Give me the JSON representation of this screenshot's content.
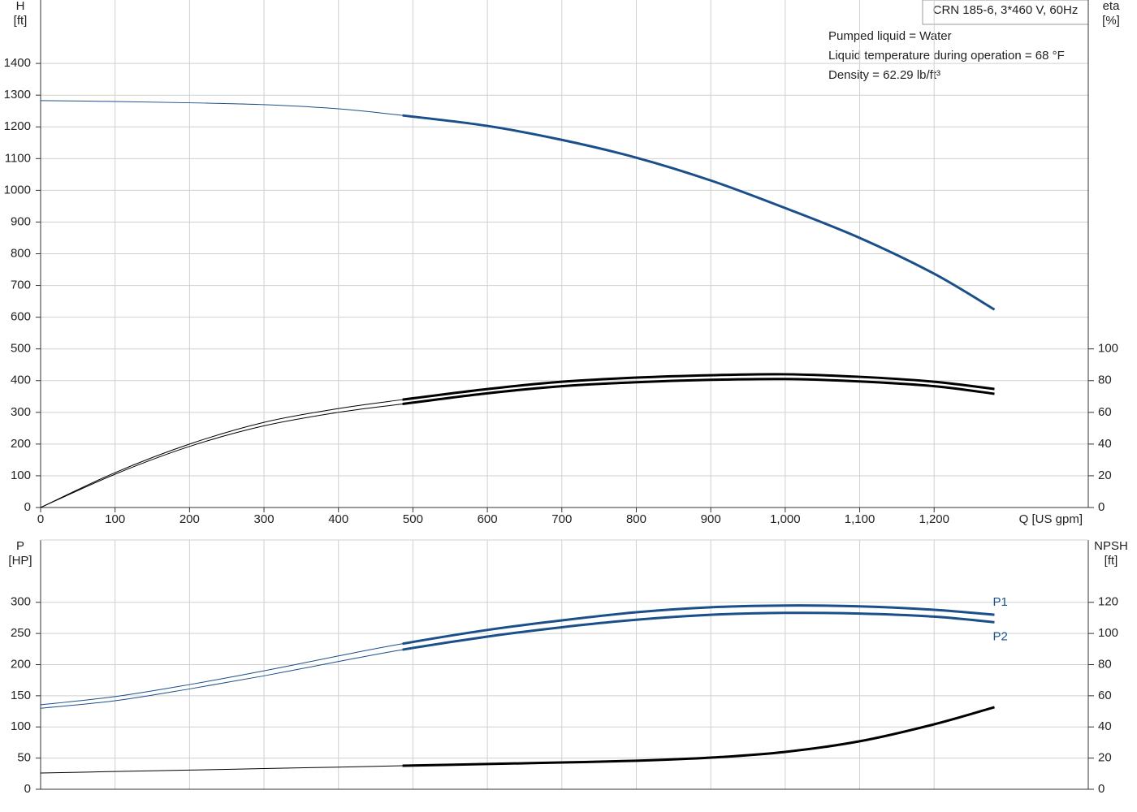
{
  "chart_data": [
    {
      "type": "line",
      "title": "CRN 185-6, 3*460 V, 60Hz",
      "notes": [
        "Pumped liquid = Water",
        "Liquid temperature during operation = 68 °F",
        "Density = 62.29 lb/ft³"
      ],
      "ylabel": "H",
      "yunit": "[ft]",
      "y2label": "eta",
      "y2unit": "[%]",
      "xlabel": "Q [US gpm]",
      "x": [
        0,
        100,
        200,
        300,
        400,
        486,
        600,
        700,
        800,
        900,
        1000,
        1100,
        1200,
        1281
      ],
      "xlim": [
        0,
        1407
      ],
      "xticks": [
        0,
        100,
        200,
        300,
        400,
        500,
        600,
        700,
        800,
        900,
        {
          "value": 1000,
          "label": "1,000"
        },
        {
          "value": 1100,
          "label": "1,100"
        },
        {
          "value": 1200,
          "label": "1,200"
        }
      ],
      "ylim": [
        0,
        1600
      ],
      "yticks": [
        0,
        100,
        200,
        300,
        400,
        500,
        600,
        700,
        800,
        900,
        1000,
        1100,
        1200,
        1300,
        1400
      ],
      "y2lim": [
        0,
        320
      ],
      "y2ticks": [
        0,
        20,
        40,
        60,
        80,
        100
      ],
      "grid": true,
      "bold_from_x": 486,
      "series": [
        {
          "color": "#1a4f8a",
          "values": [
            1283,
            1280,
            1276,
            1270,
            1257,
            1236,
            1203,
            1159,
            1103,
            1031,
            944,
            850,
            737,
            624
          ]
        },
        {
          "color": "#000000",
          "axis": "y2",
          "values": [
            0,
            22,
            40,
            53.7,
            62.4,
            68,
            74.7,
            79.3,
            81.9,
            83.4,
            84,
            82.4,
            79.3,
            74.7
          ]
        },
        {
          "color": "#000000",
          "axis": "y2",
          "values": [
            0,
            21,
            38.5,
            51.5,
            60,
            65.3,
            72,
            76.5,
            79,
            80.5,
            81,
            79.5,
            76.5,
            71.7
          ]
        }
      ]
    },
    {
      "type": "line",
      "ylabel": "P",
      "yunit": "[HP]",
      "y2label": "NPSH",
      "y2unit": "[ft]",
      "x": [
        0,
        100,
        200,
        300,
        400,
        486,
        600,
        700,
        800,
        900,
        1000,
        1100,
        1200,
        1281
      ],
      "xlim": [
        0,
        1407
      ],
      "ylim": [
        0,
        400
      ],
      "yticks": [
        0,
        50,
        100,
        150,
        200,
        250,
        300
      ],
      "y2lim": [
        0,
        160
      ],
      "y2ticks": [
        0,
        20,
        40,
        60,
        80,
        100,
        120
      ],
      "grid": true,
      "bold_from_x": 486,
      "series": [
        {
          "name": "P1",
          "color": "#1a4f8a",
          "values": [
            135.6,
            148.7,
            168,
            190,
            214,
            233.5,
            255.6,
            271,
            284,
            292,
            294.8,
            293.5,
            288,
            280
          ]
        },
        {
          "name": "P2",
          "color": "#1a4f8a",
          "values": [
            130,
            142,
            161,
            182,
            205,
            224,
            245,
            260,
            272,
            280,
            283,
            282,
            277,
            268
          ]
        },
        {
          "color": "#000000",
          "axis": "y2",
          "values": [
            10.4,
            11.4,
            12.3,
            13.3,
            14.2,
            15.1,
            16.2,
            17.2,
            18.3,
            20.3,
            24,
            30.8,
            41.7,
            52.7
          ]
        }
      ]
    }
  ]
}
